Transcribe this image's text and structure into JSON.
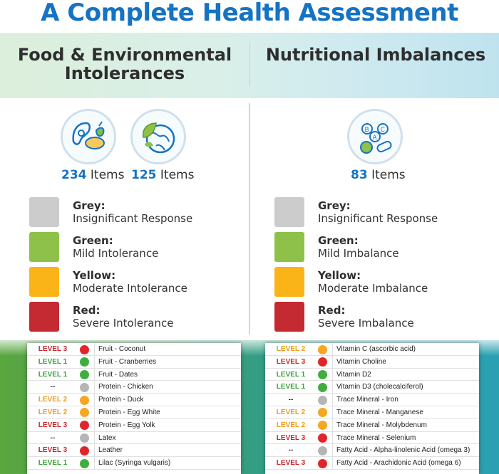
{
  "title": "A Complete Health Assessment",
  "colors": {
    "brand_blue": "#1573c3",
    "grey": "#cccccc",
    "green": "#8dc149",
    "yellow": "#fbb417",
    "red": "#c32a31",
    "level1": "#3aa03a",
    "level2": "#ef9a1a",
    "level3": "#c8262b"
  },
  "left": {
    "heading": "Food & Environmental Intolerances",
    "icons": [
      "food-icon",
      "environment-globe-icon"
    ],
    "counts": [
      {
        "number": "234",
        "unit": "Items"
      },
      {
        "number": "125",
        "unit": "Items"
      }
    ],
    "legend": [
      {
        "name": "Grey:",
        "desc": "Insignificant Response",
        "color": "grey"
      },
      {
        "name": "Green:",
        "desc": "Mild Intolerance",
        "color": "green"
      },
      {
        "name": "Yellow:",
        "desc": "Moderate Intolerance",
        "color": "yellow"
      },
      {
        "name": "Red:",
        "desc": "Severe Intolerance",
        "color": "red"
      }
    ],
    "rows": [
      {
        "level": "LEVEL 3",
        "tone": "red",
        "item": "Fruit - Coconut"
      },
      {
        "level": "LEVEL 1",
        "tone": "green",
        "item": "Fruit - Cranberries"
      },
      {
        "level": "LEVEL 1",
        "tone": "green",
        "item": "Fruit - Dates"
      },
      {
        "level": "--",
        "tone": "grey",
        "item": "Protein - Chicken"
      },
      {
        "level": "LEVEL 2",
        "tone": "yellow",
        "item": "Protein - Duck"
      },
      {
        "level": "LEVEL 2",
        "tone": "yellow",
        "item": "Protein - Egg White"
      },
      {
        "level": "LEVEL 3",
        "tone": "red",
        "item": "Protein - Egg Yolk"
      },
      {
        "level": "--",
        "tone": "grey",
        "item": "Latex"
      },
      {
        "level": "LEVEL 3",
        "tone": "red",
        "item": "Leather"
      },
      {
        "level": "LEVEL 1",
        "tone": "green",
        "item": "Lilac (Syringa vulgaris)"
      }
    ]
  },
  "right": {
    "heading": "Nutritional Imbalances",
    "icons": [
      "vitamins-icon"
    ],
    "counts": [
      {
        "number": "83",
        "unit": "Items"
      }
    ],
    "legend": [
      {
        "name": "Grey:",
        "desc": "Insignificant Response",
        "color": "grey"
      },
      {
        "name": "Green:",
        "desc": "Mild Imbalance",
        "color": "green"
      },
      {
        "name": "Yellow:",
        "desc": "Moderate Imbalance",
        "color": "yellow"
      },
      {
        "name": "Red:",
        "desc": "Severe Imbalance",
        "color": "red"
      }
    ],
    "rows": [
      {
        "level": "LEVEL 2",
        "tone": "yellow",
        "item": "Vitamin C (ascorbic acid)"
      },
      {
        "level": "LEVEL 3",
        "tone": "red",
        "item": "Vitamin Choline"
      },
      {
        "level": "LEVEL 1",
        "tone": "green",
        "item": "Vitamin D2"
      },
      {
        "level": "LEVEL 1",
        "tone": "green",
        "item": "Vitamin D3 (cholecalciferol)"
      },
      {
        "level": "--",
        "tone": "grey",
        "item": "Trace Mineral - Iron"
      },
      {
        "level": "LEVEL 2",
        "tone": "yellow",
        "item": "Trace Mineral - Manganese"
      },
      {
        "level": "LEVEL 2",
        "tone": "yellow",
        "item": "Trace Mineral - Molybdenum"
      },
      {
        "level": "LEVEL 3",
        "tone": "red",
        "item": "Trace Mineral - Selenium"
      },
      {
        "level": "--",
        "tone": "grey",
        "item": "Fatty Acid - Alpha-linolenic Acid (omega 3)"
      },
      {
        "level": "LEVEL 3",
        "tone": "red",
        "item": "Fatty Acid - Arachidonic Acid (omega 6)"
      }
    ]
  }
}
